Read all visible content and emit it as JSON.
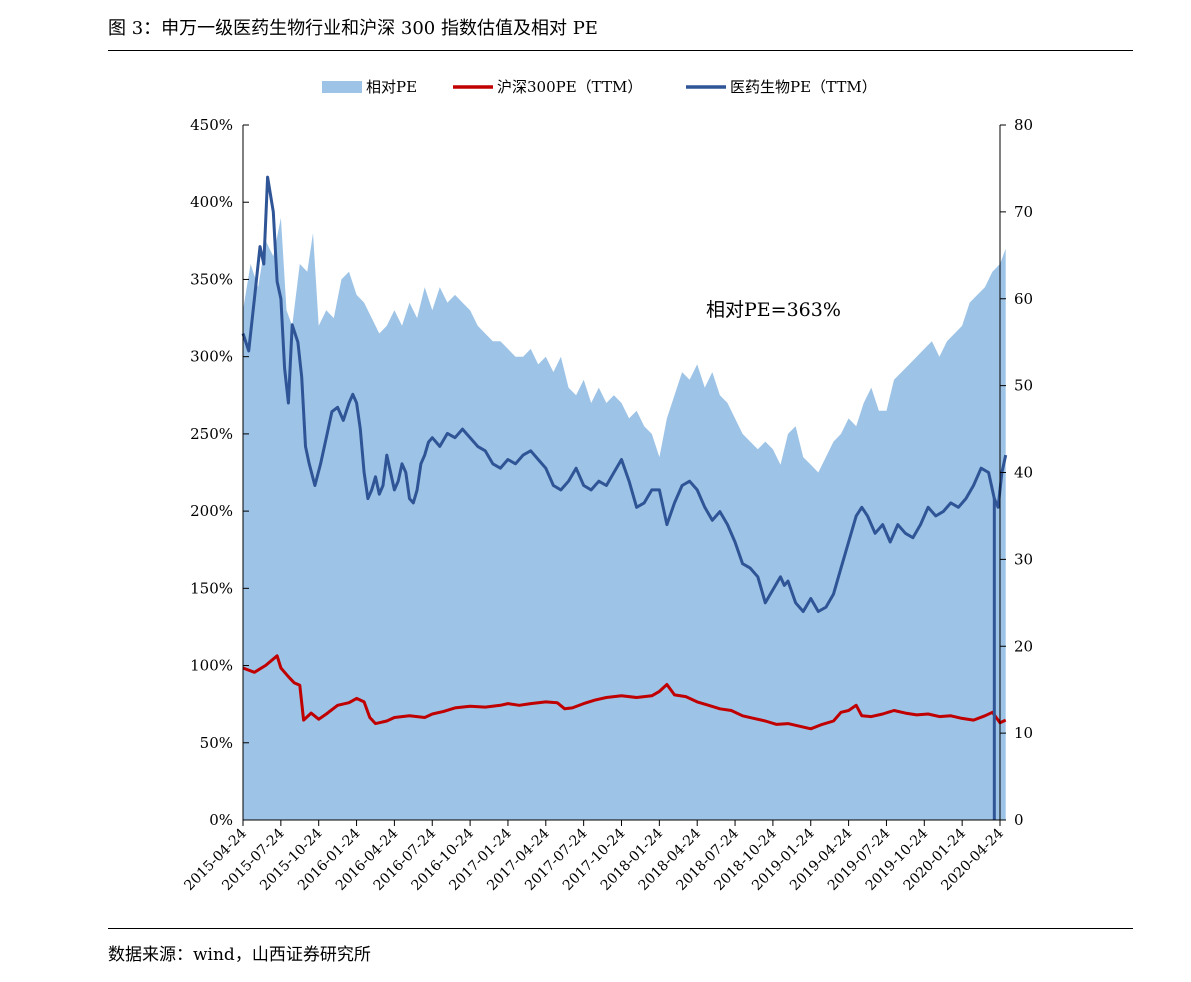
{
  "figure_title": "图 3：申万一级医药生物行业和沪深 300 指数估值及相对 PE",
  "source_note": "数据来源：wind，山西证券研究所",
  "colors": {
    "relative_pe": "#9dc3e6",
    "hs300": "#c00000",
    "pharma": "#2f5597"
  },
  "chart_data": {
    "type": "area",
    "title": "",
    "legend": {
      "position": "top"
    },
    "annotation": "相对PE=363%",
    "x_ticks": [
      "2015-04-24",
      "2015-07-24",
      "2015-10-24",
      "2016-01-24",
      "2016-04-24",
      "2016-07-24",
      "2016-10-24",
      "2017-01-24",
      "2017-04-24",
      "2017-07-24",
      "2017-10-24",
      "2018-01-24",
      "2018-04-24",
      "2018-07-24",
      "2018-10-24",
      "2019-01-24",
      "2019-04-24",
      "2019-07-24",
      "2019-10-24",
      "2020-01-24",
      "2020-04-24"
    ],
    "y_left": {
      "min": 0,
      "max": 4.5,
      "ticks": [
        "0%",
        "50%",
        "100%",
        "150%",
        "200%",
        "250%",
        "300%",
        "350%",
        "400%",
        "450%"
      ]
    },
    "y_right": {
      "min": 0,
      "max": 80,
      "ticks": [
        "0",
        "10",
        "20",
        "30",
        "40",
        "50",
        "60",
        "70",
        "80"
      ]
    },
    "series": [
      {
        "name": "相对PE",
        "type": "area",
        "axis": "left",
        "points": [
          [
            0,
            3.3
          ],
          [
            0.2,
            3.6
          ],
          [
            0.4,
            3.45
          ],
          [
            0.6,
            3.75
          ],
          [
            0.8,
            3.65
          ],
          [
            1,
            3.9
          ],
          [
            1.15,
            3.3
          ],
          [
            1.3,
            3.2
          ],
          [
            1.5,
            3.6
          ],
          [
            1.7,
            3.55
          ],
          [
            1.85,
            3.8
          ],
          [
            2,
            3.2
          ],
          [
            2.2,
            3.3
          ],
          [
            2.4,
            3.25
          ],
          [
            2.6,
            3.5
          ],
          [
            2.8,
            3.55
          ],
          [
            3,
            3.4
          ],
          [
            3.2,
            3.35
          ],
          [
            3.4,
            3.25
          ],
          [
            3.6,
            3.15
          ],
          [
            3.8,
            3.2
          ],
          [
            4,
            3.3
          ],
          [
            4.2,
            3.2
          ],
          [
            4.4,
            3.35
          ],
          [
            4.6,
            3.25
          ],
          [
            4.8,
            3.45
          ],
          [
            5,
            3.3
          ],
          [
            5.2,
            3.45
          ],
          [
            5.4,
            3.35
          ],
          [
            5.6,
            3.4
          ],
          [
            5.8,
            3.35
          ],
          [
            6,
            3.3
          ],
          [
            6.2,
            3.2
          ],
          [
            6.4,
            3.15
          ],
          [
            6.6,
            3.1
          ],
          [
            6.8,
            3.1
          ],
          [
            7,
            3.05
          ],
          [
            7.2,
            3.0
          ],
          [
            7.4,
            3.0
          ],
          [
            7.6,
            3.05
          ],
          [
            7.8,
            2.95
          ],
          [
            8,
            3.0
          ],
          [
            8.2,
            2.9
          ],
          [
            8.4,
            3.0
          ],
          [
            8.6,
            2.8
          ],
          [
            8.8,
            2.75
          ],
          [
            9,
            2.85
          ],
          [
            9.2,
            2.7
          ],
          [
            9.4,
            2.8
          ],
          [
            9.6,
            2.7
          ],
          [
            9.8,
            2.75
          ],
          [
            10,
            2.7
          ],
          [
            10.2,
            2.6
          ],
          [
            10.4,
            2.65
          ],
          [
            10.6,
            2.55
          ],
          [
            10.8,
            2.5
          ],
          [
            11,
            2.35
          ],
          [
            11.2,
            2.6
          ],
          [
            11.4,
            2.75
          ],
          [
            11.6,
            2.9
          ],
          [
            11.8,
            2.85
          ],
          [
            12,
            2.95
          ],
          [
            12.2,
            2.8
          ],
          [
            12.4,
            2.9
          ],
          [
            12.6,
            2.75
          ],
          [
            12.8,
            2.7
          ],
          [
            13,
            2.6
          ],
          [
            13.2,
            2.5
          ],
          [
            13.4,
            2.45
          ],
          [
            13.6,
            2.4
          ],
          [
            13.8,
            2.45
          ],
          [
            14,
            2.4
          ],
          [
            14.2,
            2.3
          ],
          [
            14.4,
            2.5
          ],
          [
            14.6,
            2.55
          ],
          [
            14.8,
            2.35
          ],
          [
            15,
            2.3
          ],
          [
            15.2,
            2.25
          ],
          [
            15.4,
            2.35
          ],
          [
            15.6,
            2.45
          ],
          [
            15.8,
            2.5
          ],
          [
            16,
            2.6
          ],
          [
            16.2,
            2.55
          ],
          [
            16.4,
            2.7
          ],
          [
            16.6,
            2.8
          ],
          [
            16.8,
            2.65
          ],
          [
            17,
            2.65
          ],
          [
            17.2,
            2.85
          ],
          [
            17.4,
            2.9
          ],
          [
            17.6,
            2.95
          ],
          [
            17.8,
            3.0
          ],
          [
            18,
            3.05
          ],
          [
            18.2,
            3.1
          ],
          [
            18.4,
            3.0
          ],
          [
            18.6,
            3.1
          ],
          [
            18.8,
            3.15
          ],
          [
            19,
            3.2
          ],
          [
            19.2,
            3.35
          ],
          [
            19.4,
            3.4
          ],
          [
            19.6,
            3.45
          ],
          [
            19.8,
            3.55
          ],
          [
            20,
            3.6
          ],
          [
            20.15,
            3.7
          ]
        ]
      },
      {
        "name": "沪深300PE（TTM）",
        "type": "line",
        "axis": "right",
        "points": [
          [
            0,
            17.5
          ],
          [
            0.3,
            17
          ],
          [
            0.6,
            17.8
          ],
          [
            0.9,
            18.9
          ],
          [
            1,
            17.5
          ],
          [
            1.2,
            16.5
          ],
          [
            1.35,
            15.8
          ],
          [
            1.5,
            15.5
          ],
          [
            1.6,
            11.5
          ],
          [
            1.8,
            12.3
          ],
          [
            2,
            11.6
          ],
          [
            2.2,
            12.2
          ],
          [
            2.5,
            13.2
          ],
          [
            2.8,
            13.5
          ],
          [
            3,
            14
          ],
          [
            3.2,
            13.6
          ],
          [
            3.35,
            11.8
          ],
          [
            3.5,
            11.1
          ],
          [
            3.8,
            11.4
          ],
          [
            4,
            11.8
          ],
          [
            4.4,
            12.0
          ],
          [
            4.8,
            11.8
          ],
          [
            5,
            12.2
          ],
          [
            5.3,
            12.5
          ],
          [
            5.6,
            12.9
          ],
          [
            6,
            13.1
          ],
          [
            6.4,
            13.0
          ],
          [
            6.8,
            13.2
          ],
          [
            7,
            13.4
          ],
          [
            7.3,
            13.2
          ],
          [
            7.6,
            13.4
          ],
          [
            8,
            13.6
          ],
          [
            8.3,
            13.5
          ],
          [
            8.5,
            12.8
          ],
          [
            8.7,
            12.9
          ],
          [
            9,
            13.4
          ],
          [
            9.3,
            13.8
          ],
          [
            9.6,
            14.1
          ],
          [
            10,
            14.3
          ],
          [
            10.4,
            14.1
          ],
          [
            10.8,
            14.3
          ],
          [
            11,
            14.8
          ],
          [
            11.2,
            15.6
          ],
          [
            11.4,
            14.4
          ],
          [
            11.7,
            14.2
          ],
          [
            12,
            13.6
          ],
          [
            12.3,
            13.2
          ],
          [
            12.6,
            12.8
          ],
          [
            12.9,
            12.6
          ],
          [
            13.2,
            12.0
          ],
          [
            13.5,
            11.7
          ],
          [
            13.8,
            11.4
          ],
          [
            14.1,
            11.0
          ],
          [
            14.4,
            11.1
          ],
          [
            14.7,
            10.8
          ],
          [
            15,
            10.5
          ],
          [
            15.3,
            11.0
          ],
          [
            15.6,
            11.4
          ],
          [
            15.8,
            12.4
          ],
          [
            16,
            12.6
          ],
          [
            16.2,
            13.2
          ],
          [
            16.35,
            12.0
          ],
          [
            16.6,
            11.9
          ],
          [
            16.9,
            12.2
          ],
          [
            17.2,
            12.6
          ],
          [
            17.5,
            12.3
          ],
          [
            17.8,
            12.1
          ],
          [
            18.1,
            12.2
          ],
          [
            18.4,
            11.9
          ],
          [
            18.7,
            12.0
          ],
          [
            19,
            11.7
          ],
          [
            19.3,
            11.5
          ],
          [
            19.6,
            12.0
          ],
          [
            19.8,
            12.4
          ],
          [
            20,
            11.2
          ],
          [
            20.15,
            11.5
          ]
        ]
      },
      {
        "name": "医药生物PE（TTM）",
        "type": "line",
        "axis": "right",
        "points": [
          [
            0,
            56
          ],
          [
            0.15,
            54
          ],
          [
            0.3,
            60
          ],
          [
            0.45,
            66
          ],
          [
            0.55,
            64
          ],
          [
            0.65,
            74
          ],
          [
            0.8,
            70
          ],
          [
            0.9,
            62
          ],
          [
            1,
            60
          ],
          [
            1.1,
            52
          ],
          [
            1.2,
            48
          ],
          [
            1.3,
            57
          ],
          [
            1.45,
            55
          ],
          [
            1.55,
            51
          ],
          [
            1.65,
            43
          ],
          [
            1.75,
            41
          ],
          [
            1.9,
            38.5
          ],
          [
            2.05,
            41
          ],
          [
            2.2,
            44
          ],
          [
            2.35,
            47
          ],
          [
            2.5,
            47.5
          ],
          [
            2.65,
            46
          ],
          [
            2.8,
            48
          ],
          [
            2.9,
            49
          ],
          [
            3,
            48
          ],
          [
            3.1,
            45
          ],
          [
            3.2,
            40
          ],
          [
            3.3,
            37
          ],
          [
            3.4,
            38
          ],
          [
            3.5,
            39.5
          ],
          [
            3.6,
            37.5
          ],
          [
            3.7,
            38.5
          ],
          [
            3.8,
            42
          ],
          [
            3.9,
            40
          ],
          [
            4,
            38
          ],
          [
            4.1,
            39
          ],
          [
            4.2,
            41
          ],
          [
            4.3,
            40
          ],
          [
            4.4,
            37
          ],
          [
            4.5,
            36.5
          ],
          [
            4.6,
            38
          ],
          [
            4.7,
            41
          ],
          [
            4.8,
            42
          ],
          [
            4.9,
            43.5
          ],
          [
            5,
            44
          ],
          [
            5.2,
            43
          ],
          [
            5.4,
            44.5
          ],
          [
            5.6,
            44
          ],
          [
            5.8,
            45
          ],
          [
            6,
            44
          ],
          [
            6.2,
            43
          ],
          [
            6.4,
            42.5
          ],
          [
            6.6,
            41
          ],
          [
            6.8,
            40.5
          ],
          [
            7,
            41.5
          ],
          [
            7.2,
            41
          ],
          [
            7.4,
            42
          ],
          [
            7.6,
            42.5
          ],
          [
            7.8,
            41.5
          ],
          [
            8,
            40.5
          ],
          [
            8.2,
            38.5
          ],
          [
            8.4,
            38
          ],
          [
            8.6,
            39
          ],
          [
            8.8,
            40.5
          ],
          [
            9,
            38.5
          ],
          [
            9.2,
            38
          ],
          [
            9.4,
            39
          ],
          [
            9.6,
            38.5
          ],
          [
            9.8,
            40
          ],
          [
            10,
            41.5
          ],
          [
            10.2,
            39
          ],
          [
            10.4,
            36
          ],
          [
            10.6,
            36.5
          ],
          [
            10.8,
            38
          ],
          [
            11,
            38
          ],
          [
            11.2,
            34
          ],
          [
            11.4,
            36.5
          ],
          [
            11.6,
            38.5
          ],
          [
            11.8,
            39
          ],
          [
            12,
            38
          ],
          [
            12.2,
            36
          ],
          [
            12.4,
            34.5
          ],
          [
            12.6,
            35.5
          ],
          [
            12.8,
            34
          ],
          [
            13,
            32
          ],
          [
            13.2,
            29.5
          ],
          [
            13.4,
            29
          ],
          [
            13.6,
            28
          ],
          [
            13.8,
            25
          ],
          [
            14,
            26.5
          ],
          [
            14.2,
            28
          ],
          [
            14.3,
            27
          ],
          [
            14.4,
            27.5
          ],
          [
            14.6,
            25
          ],
          [
            14.8,
            24
          ],
          [
            15,
            25.5
          ],
          [
            15.2,
            24
          ],
          [
            15.4,
            24.5
          ],
          [
            15.6,
            26
          ],
          [
            15.8,
            29
          ],
          [
            16,
            32
          ],
          [
            16.2,
            35
          ],
          [
            16.35,
            36
          ],
          [
            16.5,
            35
          ],
          [
            16.7,
            33
          ],
          [
            16.9,
            34
          ],
          [
            17.1,
            32
          ],
          [
            17.3,
            34
          ],
          [
            17.5,
            33
          ],
          [
            17.7,
            32.5
          ],
          [
            17.9,
            34
          ],
          [
            18.1,
            36
          ],
          [
            18.3,
            35
          ],
          [
            18.5,
            35.5
          ],
          [
            18.7,
            36.5
          ],
          [
            18.9,
            36
          ],
          [
            19.1,
            37
          ],
          [
            19.3,
            38.5
          ],
          [
            19.5,
            40.5
          ],
          [
            19.7,
            40
          ],
          [
            19.85,
            37
          ],
          [
            19.95,
            36
          ],
          [
            20.05,
            40
          ],
          [
            20.15,
            42
          ]
        ]
      }
    ]
  }
}
